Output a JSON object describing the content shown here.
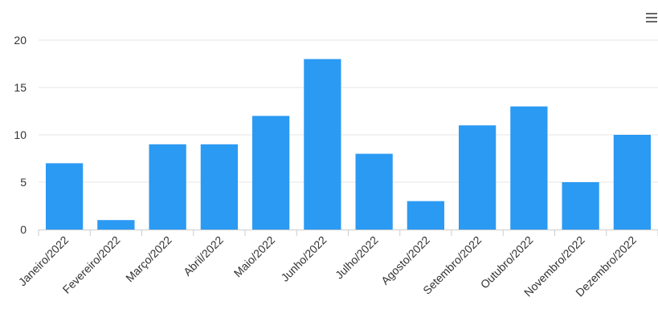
{
  "toolbar": {
    "menu_icon": "hamburger-menu-icon"
  },
  "colors": {
    "bar": "#2b9af3",
    "grid": "#e6e6e6",
    "axis": "#cccccc",
    "text": "#333333"
  },
  "chart_data": {
    "type": "bar",
    "title": "",
    "xlabel": "",
    "ylabel": "",
    "categories": [
      "Janeiro/2022",
      "Fevereiro/2022",
      "Março/2022",
      "Abril/2022",
      "Maio/2022",
      "Junho/2022",
      "Julho/2022",
      "Agosto/2022",
      "Setembro/2022",
      "Outubro/2022",
      "Novembro/2022",
      "Dezembro/2022"
    ],
    "values": [
      7,
      1,
      9,
      9,
      12,
      18,
      8,
      3,
      11,
      13,
      5,
      10
    ],
    "ylim": [
      0,
      20
    ],
    "yticks": [
      "0",
      "5",
      "10",
      "15",
      "20"
    ],
    "grid": true,
    "legend": "none"
  }
}
